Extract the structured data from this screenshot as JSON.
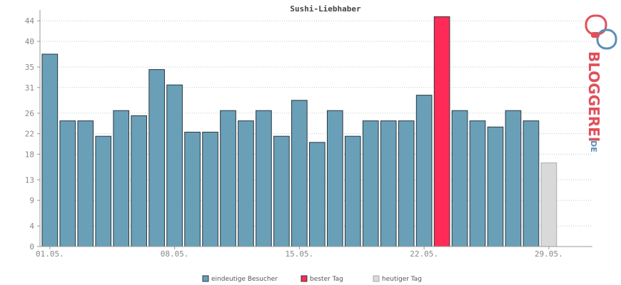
{
  "colors": {
    "visitors": "#6a9fb8",
    "best": "#ff2a55",
    "today": "#d9d9d9",
    "bar_stroke": "#2b3a40",
    "today_stroke": "#aaaaaa",
    "grid": "#c8c8c8",
    "axis": "#999999",
    "logo_red": "#e0505a",
    "logo_blue": "#5a8fb8"
  },
  "logo": {
    "brand": "BLOGGEREI",
    "tld": ".DE"
  },
  "chart_data": {
    "type": "bar",
    "title": "Sushi-Liebhaber",
    "xlabel": "",
    "ylabel": "",
    "ylim": [
      0,
      45
    ],
    "yticks": [
      0,
      4,
      9,
      13,
      18,
      22,
      26,
      31,
      35,
      40,
      44
    ],
    "xtick_labels": [
      {
        "index": 0,
        "label": "01.05."
      },
      {
        "index": 7,
        "label": "08.05."
      },
      {
        "index": 14,
        "label": "15.05."
      },
      {
        "index": 21,
        "label": "22.05."
      },
      {
        "index": 28,
        "label": "29.05."
      }
    ],
    "grid": true,
    "legend_position": "bottom",
    "categories": [
      "01.05.",
      "02.05.",
      "03.05.",
      "04.05.",
      "05.05.",
      "06.05.",
      "07.05.",
      "08.05.",
      "09.05.",
      "10.05.",
      "11.05.",
      "12.05.",
      "13.05.",
      "14.05.",
      "15.05.",
      "16.05.",
      "17.05.",
      "18.05.",
      "19.05.",
      "20.05.",
      "21.05.",
      "22.05.",
      "23.05.",
      "24.05.",
      "25.05.",
      "26.05.",
      "27.05.",
      "28.05.",
      "29.05.",
      "30.05.",
      "31.05."
    ],
    "values": [
      37.5,
      24.5,
      24.5,
      21.5,
      26.5,
      25.5,
      34.5,
      31.5,
      22.3,
      22.3,
      26.5,
      24.5,
      26.5,
      21.5,
      28.5,
      20.3,
      26.5,
      21.5,
      24.5,
      24.5,
      24.5,
      29.5,
      44.8,
      26.5,
      24.5,
      23.3,
      26.5,
      24.5,
      16.3,
      null,
      null
    ],
    "kinds": [
      "visitors",
      "visitors",
      "visitors",
      "visitors",
      "visitors",
      "visitors",
      "visitors",
      "visitors",
      "visitors",
      "visitors",
      "visitors",
      "visitors",
      "visitors",
      "visitors",
      "visitors",
      "visitors",
      "visitors",
      "visitors",
      "visitors",
      "visitors",
      "visitors",
      "visitors",
      "best",
      "visitors",
      "visitors",
      "visitors",
      "visitors",
      "visitors",
      "today",
      "none",
      "none"
    ],
    "legend": [
      {
        "label": "eindeutige Besucher",
        "color_key": "visitors"
      },
      {
        "label": "bester Tag",
        "color_key": "best"
      },
      {
        "label": "heutiger Tag",
        "color_key": "today"
      }
    ]
  }
}
